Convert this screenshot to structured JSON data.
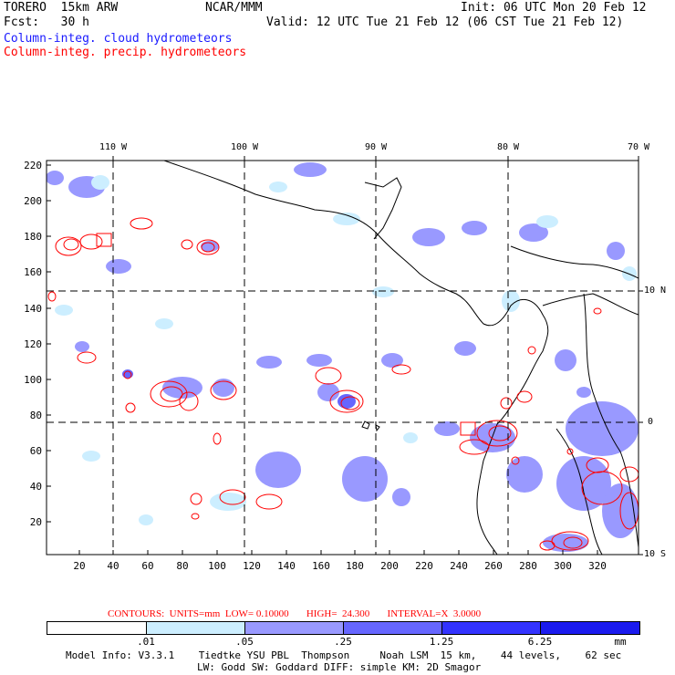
{
  "header": {
    "model": "TORERO  15km ARW",
    "center": "NCAR/MMM",
    "init": "Init: 06 UTC Mon 20 Feb 12",
    "fcst": "Fcst:   30 h",
    "valid": "Valid: 12 UTC Tue 21 Feb 12 (06 CST Tue 21 Feb 12)",
    "cloud_label": "Column-integ. cloud hydrometeors",
    "precip_label": "Column-integ. precip. hydrometeors"
  },
  "colors": {
    "cloud_light": "#cceeff",
    "cloud_mid": "#9999ff",
    "cloud_strong": "#6666ff",
    "precip_contour": "#ff0000",
    "label_blue": "#1a1aff"
  },
  "axes": {
    "y_ticks": [
      "220",
      "200",
      "180",
      "160",
      "140",
      "120",
      "100",
      "80",
      "60",
      "40",
      "20"
    ],
    "x_ticks": [
      "20",
      "40",
      "60",
      "80",
      "100",
      "120",
      "140",
      "160",
      "180",
      "200",
      "220",
      "240",
      "260",
      "280",
      "300",
      "320"
    ],
    "lon_labels": [
      "110 W",
      "100 W",
      "90 W",
      "80 W",
      "70 W"
    ],
    "lat_labels": [
      "10 N",
      "0",
      "10 S"
    ]
  },
  "contour_info": "CONTOURS:  UNITS=mm  LOW= 0.10000       HIGH=  24.300       INTERVAL=X  3.0000",
  "colorbar": {
    "ticks": [
      ".01",
      ".05",
      ".25",
      "1.25",
      "6.25"
    ],
    "units": "mm",
    "colors": [
      "#ffffff",
      "#cceeff",
      "#9999ff",
      "#6666ff",
      "#3333ff",
      "#1a1aee"
    ]
  },
  "model_info": {
    "line1": "Model Info: V3.3.1    Tiedtke YSU PBL  Thompson     Noah LSM  15 km,    44 levels,    62 sec",
    "line2": "LW: Godd SW: Goddard DIFF: simple KM: 2D Smagor"
  }
}
